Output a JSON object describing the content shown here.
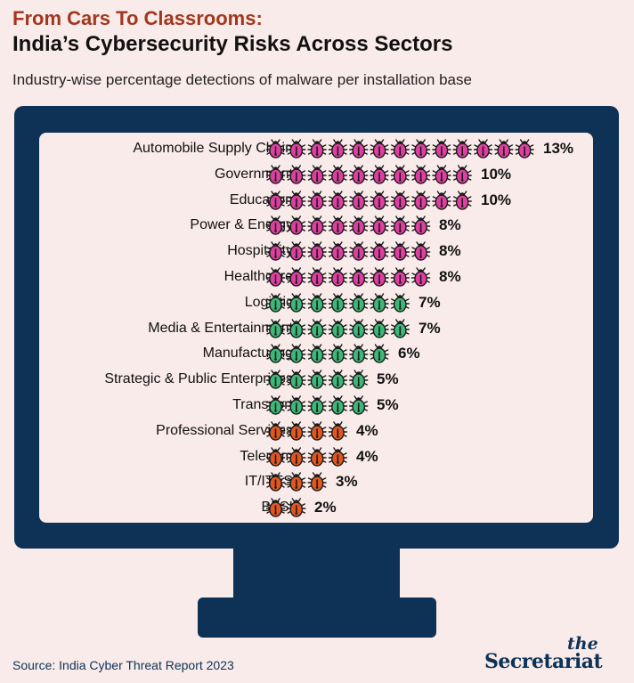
{
  "header": {
    "kicker": "From Cars To Classrooms:",
    "title": "India’s Cybersecurity Risks Across Sectors",
    "subtitle": "Industry-wise percentage detections of malware per installation base"
  },
  "footer": {
    "source": "Source: India Cyber Threat Report 2023",
    "brand_the": "the",
    "brand_name": "Secretariat"
  },
  "colors": {
    "high": "#e03fa2",
    "mid": "#3cb878",
    "low": "#e3571f",
    "navy": "#0d3256",
    "bug_outline": "#1a1a1a"
  },
  "icon": "bug-icon",
  "chart_data": {
    "type": "pictograph",
    "unit": "%",
    "categories": [
      "Automobile Supply Chain",
      "Government",
      "Education",
      "Power & Energy",
      "Hospitality",
      "Healthcare",
      "Logistic",
      "Media & Entertainment",
      "Manufacturing",
      "Strategic & Public Enterprises",
      "Transport",
      "Professional Services",
      "Telecom",
      "IT/ITES",
      "BFSI"
    ],
    "values": [
      13,
      10,
      10,
      8,
      8,
      8,
      7,
      7,
      6,
      5,
      5,
      4,
      4,
      3,
      2
    ],
    "value_labels": [
      "13%",
      "10%",
      "10%",
      "8%",
      "8%",
      "8%",
      "7%",
      "7%",
      "6%",
      "5%",
      "5%",
      "4%",
      "4%",
      "3%",
      "2%"
    ],
    "color_groups": [
      "high",
      "high",
      "high",
      "high",
      "high",
      "high",
      "mid",
      "mid",
      "mid",
      "mid",
      "mid",
      "low",
      "low",
      "low",
      "low"
    ]
  }
}
